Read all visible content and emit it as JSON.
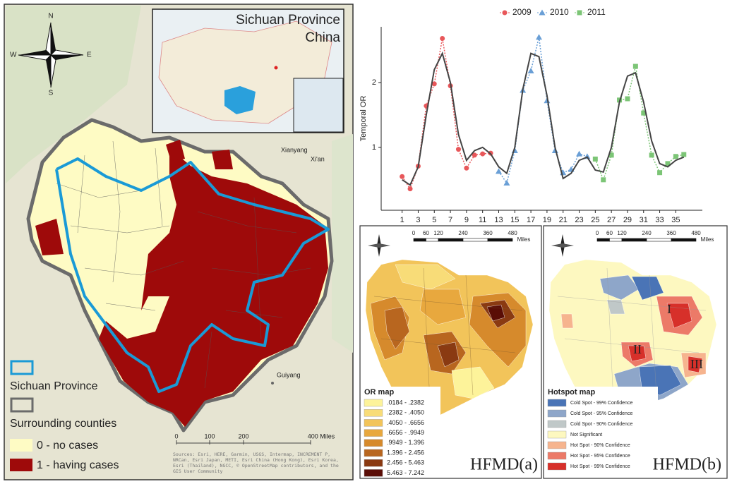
{
  "left_map": {
    "inset_title": [
      "Sichuan Province",
      "China"
    ],
    "cities": [
      "Xianyang",
      "Xi'an",
      "Guiyang"
    ],
    "compass": {
      "n": "N",
      "s": "S",
      "e": "E",
      "w": "W"
    },
    "legend": [
      {
        "label": "Sichuan Province",
        "color": "#1a9ad6",
        "outline": true
      },
      {
        "label": "Surrounding counties",
        "color": "#6b6b6b",
        "outline": true
      },
      {
        "label": "0 - no cases",
        "color": "#fefbc4",
        "outline": false
      },
      {
        "label": "1 - having cases",
        "color": "#9e0a0a",
        "outline": false
      }
    ],
    "scale": [
      "0",
      "100",
      "200",
      "400 Miles"
    ],
    "attribution": "Sources: Esri, HERE, Garmin, USGS, Intermap, INCREMENT P, NRCan, Esri Japan, METI, Esri China (Hong Kong), Esri Korea, Esri (Thailand), NGCC, © OpenStreetMap contributors, and the GIS User Community"
  },
  "chart_data": {
    "type": "line",
    "y_label": "Temporal OR",
    "xlim": [
      -1.6,
      38.3
    ],
    "ylim": [
      0.03,
      2.86
    ],
    "xticks": [
      1,
      3,
      5,
      7,
      9,
      11,
      13,
      15,
      17,
      19,
      21,
      23,
      25,
      27,
      29,
      31,
      33,
      35
    ],
    "yticks": [
      1,
      2
    ],
    "series": [
      {
        "name": "2009",
        "color": "#e8575a",
        "marker": "circle",
        "dotted": true,
        "x": [
          1,
          2,
          3,
          4,
          5,
          6,
          7,
          8,
          9,
          10,
          11,
          12
        ],
        "values": [
          0.55,
          0.36,
          0.71,
          1.64,
          1.98,
          2.68,
          1.95,
          0.97,
          0.68,
          0.88,
          0.9,
          0.91
        ]
      },
      {
        "name": "2010",
        "color": "#6a9fd6",
        "marker": "triangle",
        "dotted": true,
        "x": [
          13,
          14,
          15,
          16,
          17,
          18,
          19,
          20,
          21,
          22,
          23,
          24
        ],
        "values": [
          0.63,
          0.45,
          0.95,
          1.88,
          2.18,
          2.7,
          1.72,
          0.95,
          0.61,
          0.66,
          0.9,
          0.86
        ]
      },
      {
        "name": "2011",
        "color": "#7cc576",
        "marker": "square",
        "dotted": true,
        "x": [
          25,
          26,
          27,
          28,
          29,
          30,
          31,
          32,
          33,
          34,
          35,
          36
        ],
        "values": [
          0.82,
          0.5,
          0.88,
          1.73,
          1.75,
          2.25,
          1.53,
          0.88,
          0.61,
          0.75,
          0.86,
          0.89
        ]
      },
      {
        "color": "#444444",
        "dotted": false,
        "x": [
          1,
          2,
          3,
          4,
          5,
          6,
          7,
          8,
          9,
          10,
          11,
          12,
          13,
          14,
          15,
          16,
          17,
          18,
          19,
          20,
          21,
          22,
          23,
          24,
          25,
          26,
          27,
          28,
          29,
          30,
          31,
          32,
          33,
          34,
          35,
          36
        ],
        "values": [
          0.5,
          0.42,
          0.7,
          1.5,
          2.2,
          2.45,
          2.0,
          1.2,
          0.8,
          0.95,
          1.0,
          0.9,
          0.7,
          0.6,
          1.0,
          1.9,
          2.45,
          2.4,
          1.8,
          1.0,
          0.52,
          0.6,
          0.8,
          0.85,
          0.65,
          0.62,
          1.0,
          1.7,
          2.1,
          2.15,
          1.7,
          1.1,
          0.75,
          0.7,
          0.8,
          0.85
        ]
      }
    ]
  },
  "or_map": {
    "title": "OR map",
    "classes": [
      {
        "label": ".0184 - .2382",
        "color": "#fdf39a"
      },
      {
        "label": ".2382 - .4050",
        "color": "#f8dc78"
      },
      {
        "label": ".4050 - .6656",
        "color": "#f2c45a"
      },
      {
        "label": ".6656 - .9949",
        "color": "#e8a83e"
      },
      {
        "label": ".9949 - 1.396",
        "color": "#d68a2c"
      },
      {
        "label": "1.396 - 2.456",
        "color": "#b8661f"
      },
      {
        "label": "2.456 - 5.463",
        "color": "#8a3a12"
      },
      {
        "label": "5.463 - 7.242",
        "color": "#5a0d06"
      }
    ],
    "scale": [
      "0",
      "60",
      "120",
      "240",
      "360",
      "480",
      "Miles"
    ],
    "panel_label": "HFMD(a)"
  },
  "hotspot_map": {
    "title": "Hotspot map",
    "classes": [
      {
        "label": "Cold Spot - 99% Confidence",
        "color": "#4a74b6"
      },
      {
        "label": "Cold Spot - 95% Confidence",
        "color": "#8ea6c9"
      },
      {
        "label": "Cold Spot - 90% Confidence",
        "color": "#c0c8c8"
      },
      {
        "label": "Not Significant",
        "color": "#fdf8c0"
      },
      {
        "label": "Hot Spot - 90% Confidence",
        "color": "#f6b48e"
      },
      {
        "label": "Hot Spot - 95% Confidence",
        "color": "#ec7a68"
      },
      {
        "label": "Hot Spot - 99% Confidence",
        "color": "#d7302a"
      }
    ],
    "scale": [
      "0",
      "60",
      "120",
      "240",
      "360",
      "480",
      "Miles"
    ],
    "regions": [
      "I",
      "II",
      "III"
    ],
    "panel_label": "HFMD(b)"
  }
}
